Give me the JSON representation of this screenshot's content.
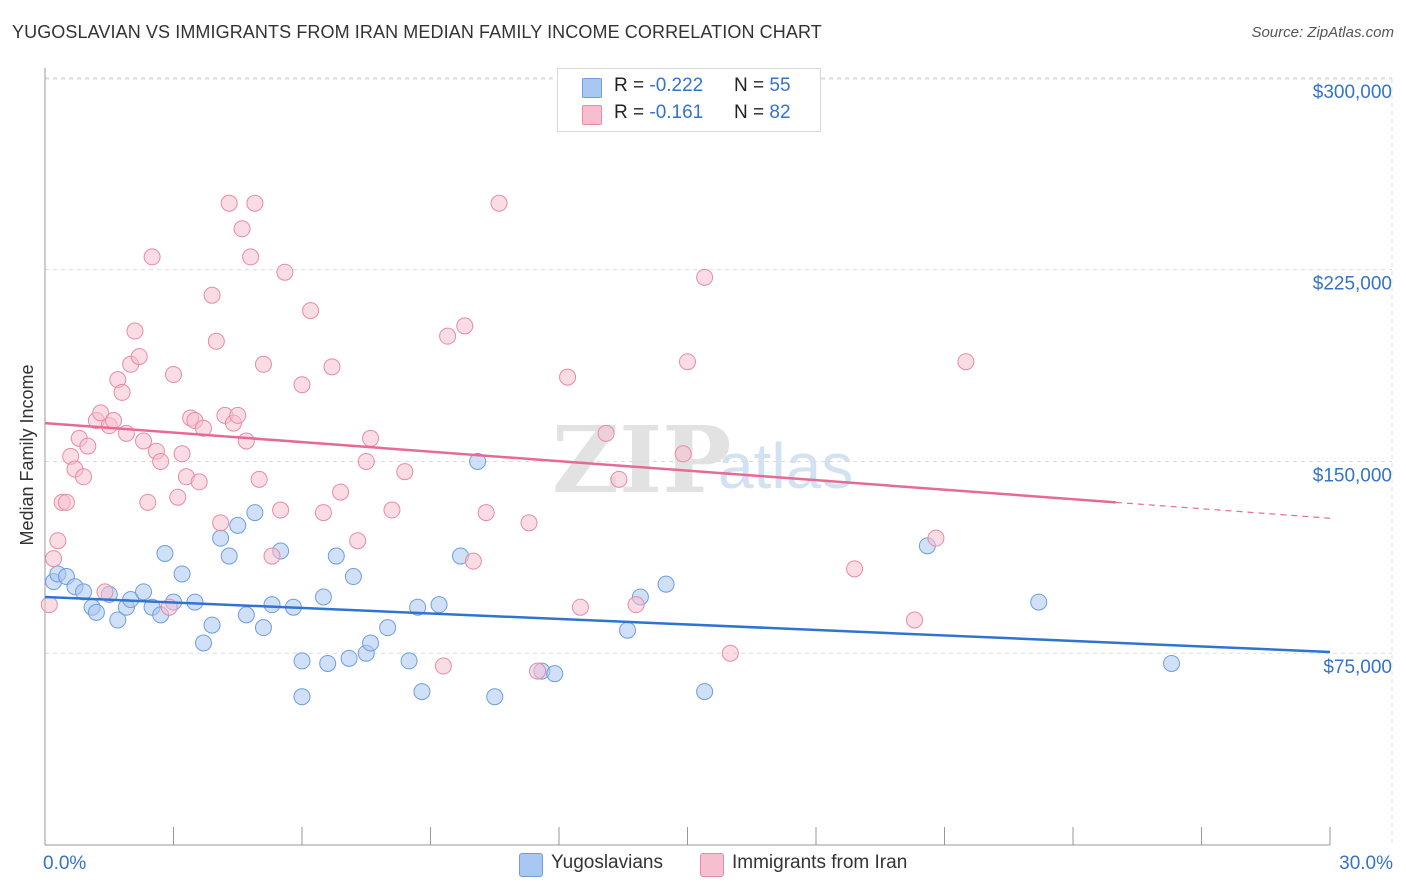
{
  "title": "YUGOSLAVIAN VS IMMIGRANTS FROM IRAN MEDIAN FAMILY INCOME CORRELATION CHART",
  "source": "Source: ZipAtlas.com",
  "watermark": {
    "zip": "ZIP",
    "atlas": "atlas"
  },
  "legend": {
    "rows": [
      {
        "r_label": "R = ",
        "r_value": "-0.222",
        "n_label": "N = ",
        "n_value": "55"
      },
      {
        "r_label": "R = ",
        "r_value": "-0.161",
        "n_label": "N = ",
        "n_value": "82"
      }
    ]
  },
  "colors": {
    "blue_fill": "#a9c7f0",
    "blue_stroke": "#6d9ee0",
    "blue_line": "#2f74d0",
    "pink_fill": "#f6bfd0",
    "pink_stroke": "#e98aa8",
    "pink_line": "#e56b95",
    "axis_label": "#3573c9",
    "grid": "#dcdcdc"
  },
  "chart_data": {
    "type": "scatter",
    "title": "YUGOSLAVIAN VS IMMIGRANTS FROM IRAN MEDIAN FAMILY INCOME CORRELATION CHART",
    "xlabel": "",
    "ylabel": "Median Family Income",
    "x_tick_labels": [
      "0.0%",
      "30.0%"
    ],
    "y_tick_labels": [
      "$75,000",
      "$150,000",
      "$225,000",
      "$300,000"
    ],
    "y_ticks": [
      75000,
      150000,
      225000,
      300000
    ],
    "xlim": [
      0,
      30
    ],
    "ylim": [
      0,
      307000
    ],
    "grid": true,
    "legend_position": "bottom-center",
    "series": [
      {
        "name": "Yugoslavians",
        "color": "blue",
        "points": [
          [
            0.2,
            103000
          ],
          [
            0.3,
            106000
          ],
          [
            0.5,
            105000
          ],
          [
            0.7,
            101000
          ],
          [
            0.9,
            99000
          ],
          [
            1.1,
            93000
          ],
          [
            1.2,
            91000
          ],
          [
            1.5,
            98000
          ],
          [
            1.7,
            88000
          ],
          [
            1.9,
            93000
          ],
          [
            2.0,
            96000
          ],
          [
            2.3,
            99000
          ],
          [
            2.5,
            93000
          ],
          [
            2.7,
            90000
          ],
          [
            2.8,
            114000
          ],
          [
            3.0,
            95000
          ],
          [
            3.2,
            106000
          ],
          [
            3.5,
            95000
          ],
          [
            3.7,
            79000
          ],
          [
            3.9,
            86000
          ],
          [
            4.1,
            120000
          ],
          [
            4.3,
            113000
          ],
          [
            4.5,
            125000
          ],
          [
            4.7,
            90000
          ],
          [
            4.9,
            130000
          ],
          [
            5.1,
            85000
          ],
          [
            5.3,
            94000
          ],
          [
            5.5,
            115000
          ],
          [
            5.8,
            93000
          ],
          [
            6.0,
            72000
          ],
          [
            6.0,
            58000
          ],
          [
            6.5,
            97000
          ],
          [
            6.6,
            71000
          ],
          [
            6.8,
            113000
          ],
          [
            7.1,
            73000
          ],
          [
            7.2,
            105000
          ],
          [
            7.5,
            75000
          ],
          [
            7.6,
            79000
          ],
          [
            8.0,
            85000
          ],
          [
            8.5,
            72000
          ],
          [
            8.7,
            93000
          ],
          [
            8.8,
            60000
          ],
          [
            9.2,
            94000
          ],
          [
            9.7,
            113000
          ],
          [
            10.1,
            150000
          ],
          [
            10.5,
            58000
          ],
          [
            11.6,
            68000
          ],
          [
            11.9,
            67000
          ],
          [
            13.6,
            84000
          ],
          [
            13.9,
            97000
          ],
          [
            14.5,
            102000
          ],
          [
            15.4,
            60000
          ],
          [
            20.6,
            117000
          ],
          [
            23.2,
            95000
          ],
          [
            26.3,
            71000
          ]
        ]
      },
      {
        "name": "Immigrants from Iran",
        "color": "pink",
        "points": [
          [
            0.1,
            94000
          ],
          [
            0.2,
            112000
          ],
          [
            0.3,
            119000
          ],
          [
            0.4,
            134000
          ],
          [
            0.5,
            134000
          ],
          [
            0.6,
            152000
          ],
          [
            0.7,
            147000
          ],
          [
            0.8,
            159000
          ],
          [
            0.9,
            144000
          ],
          [
            1.0,
            156000
          ],
          [
            1.2,
            166000
          ],
          [
            1.3,
            169000
          ],
          [
            1.4,
            99000
          ],
          [
            1.5,
            164000
          ],
          [
            1.6,
            166000
          ],
          [
            1.7,
            182000
          ],
          [
            1.8,
            177000
          ],
          [
            1.9,
            161000
          ],
          [
            2.0,
            188000
          ],
          [
            2.1,
            201000
          ],
          [
            2.2,
            191000
          ],
          [
            2.3,
            158000
          ],
          [
            2.4,
            134000
          ],
          [
            2.5,
            230000
          ],
          [
            2.6,
            154000
          ],
          [
            2.7,
            150000
          ],
          [
            2.9,
            93000
          ],
          [
            3.0,
            184000
          ],
          [
            3.1,
            136000
          ],
          [
            3.2,
            153000
          ],
          [
            3.3,
            144000
          ],
          [
            3.4,
            167000
          ],
          [
            3.5,
            166000
          ],
          [
            3.6,
            142000
          ],
          [
            3.7,
            163000
          ],
          [
            3.9,
            215000
          ],
          [
            4.0,
            197000
          ],
          [
            4.1,
            126000
          ],
          [
            4.2,
            168000
          ],
          [
            4.3,
            251000
          ],
          [
            4.4,
            165000
          ],
          [
            4.5,
            168000
          ],
          [
            4.6,
            241000
          ],
          [
            4.7,
            158000
          ],
          [
            4.8,
            230000
          ],
          [
            4.9,
            251000
          ],
          [
            5.0,
            143000
          ],
          [
            5.1,
            188000
          ],
          [
            5.3,
            113000
          ],
          [
            5.5,
            131000
          ],
          [
            5.6,
            224000
          ],
          [
            6.0,
            180000
          ],
          [
            6.2,
            209000
          ],
          [
            6.5,
            130000
          ],
          [
            6.7,
            187000
          ],
          [
            6.9,
            138000
          ],
          [
            7.3,
            119000
          ],
          [
            7.5,
            150000
          ],
          [
            7.6,
            159000
          ],
          [
            8.1,
            131000
          ],
          [
            8.4,
            146000
          ],
          [
            9.3,
            70000
          ],
          [
            9.4,
            199000
          ],
          [
            9.8,
            203000
          ],
          [
            10.0,
            111000
          ],
          [
            10.3,
            130000
          ],
          [
            10.6,
            251000
          ],
          [
            11.3,
            126000
          ],
          [
            11.5,
            68000
          ],
          [
            12.2,
            183000
          ],
          [
            12.5,
            93000
          ],
          [
            13.1,
            161000
          ],
          [
            13.4,
            143000
          ],
          [
            13.8,
            94000
          ],
          [
            14.9,
            153000
          ],
          [
            15.0,
            189000
          ],
          [
            15.4,
            222000
          ],
          [
            16.0,
            75000
          ],
          [
            18.9,
            108000
          ],
          [
            20.3,
            88000
          ],
          [
            20.8,
            120000
          ],
          [
            21.5,
            189000
          ]
        ]
      }
    ],
    "trend_lines": [
      {
        "series": "Yugoslavians",
        "x": [
          0,
          30
        ],
        "y": [
          97000,
          75500
        ]
      },
      {
        "series": "Immigrants from Iran",
        "x": [
          0,
          25
        ],
        "y": [
          165000,
          134000
        ],
        "dashed_extension": [
          25,
          30
        ]
      }
    ]
  },
  "bottom_legend": [
    {
      "label": "Yugoslavians"
    },
    {
      "label": "Immigrants from Iran"
    }
  ]
}
